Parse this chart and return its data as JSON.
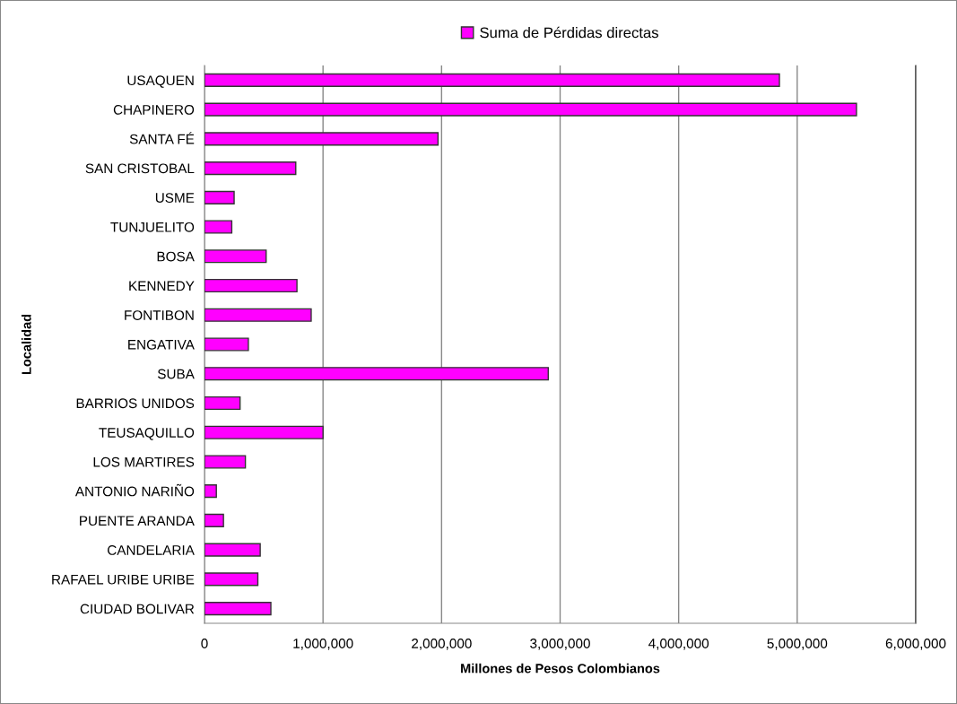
{
  "chart_data": {
    "type": "bar",
    "orientation": "horizontal",
    "xlabel": "Millones de Pesos Colombianos",
    "ylabel": "Localidad",
    "categories": [
      "USAQUEN",
      "CHAPINERO",
      "SANTA FÉ",
      "SAN CRISTOBAL",
      "USME",
      "TUNJUELITO",
      "BOSA",
      "KENNEDY",
      "FONTIBON",
      "ENGATIVA",
      "SUBA",
      "BARRIOS UNIDOS",
      "TEUSAQUILLO",
      "LOS MARTIRES",
      "ANTONIO NARIÑO",
      "PUENTE ARANDA",
      "CANDELARIA",
      "RAFAEL URIBE URIBE",
      "CIUDAD BOLIVAR"
    ],
    "series": [
      {
        "name": "Suma de Pérdidas directas",
        "color": "#ff00ff",
        "values": [
          4850000,
          5500000,
          1970000,
          770000,
          250000,
          230000,
          520000,
          780000,
          900000,
          370000,
          2900000,
          300000,
          1000000,
          345000,
          100000,
          160000,
          470000,
          450000,
          560000
        ]
      }
    ],
    "xlim": [
      0,
      6000000
    ],
    "xticks": [
      0,
      {
        "value": 1000000,
        "label": "1,000,000"
      },
      {
        "value": 2000000,
        "label": "2,000,000"
      },
      {
        "value": 3000000,
        "label": "3,000,000"
      },
      {
        "value": 4000000,
        "label": "4,000,000"
      },
      {
        "value": 5000000,
        "label": "5,000,000"
      },
      {
        "value": 6000000,
        "label": "6,000,000"
      }
    ],
    "grid": "x",
    "legend": "top"
  }
}
